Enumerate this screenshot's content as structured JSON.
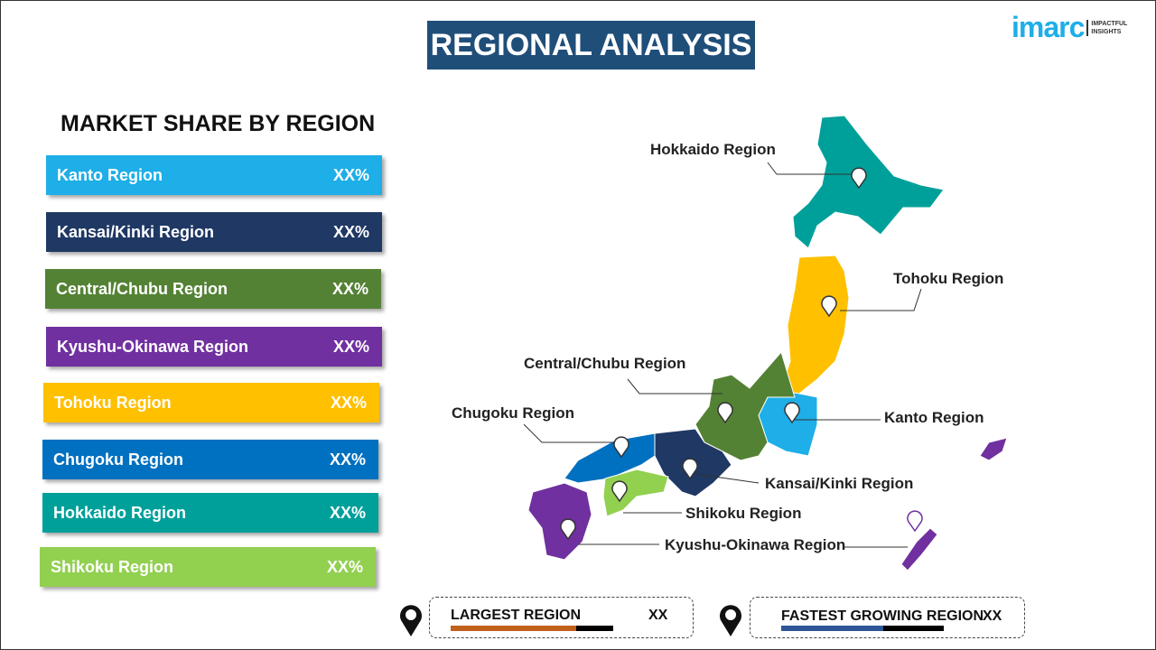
{
  "title": "REGIONAL ANALYSIS",
  "logo": {
    "brand": "imarc",
    "tagline1": "IMPACTFUL",
    "tagline2": "INSIGHTS"
  },
  "market_share_title": "MARKET SHARE BY REGION",
  "regions": [
    {
      "label": "Kanto  Region",
      "value": "XX%",
      "color": "#1eaee8"
    },
    {
      "label": "Kansai/Kinki  Region",
      "value": "XX%",
      "color": "#1f3864"
    },
    {
      "label": "Central/Chubu  Region",
      "value": "XX%",
      "color": "#548235"
    },
    {
      "label": "Kyushu-Okinawa  Region",
      "value": "XX%",
      "color": "#7030a0"
    },
    {
      "label": "Tohoku  Region",
      "value": "XX%",
      "color": "#ffc000"
    },
    {
      "label": "Chugoku  Region",
      "value": "XX%",
      "color": "#0070c0"
    },
    {
      "label": "Hokkaido  Region",
      "value": "XX%",
      "color": "#00a09a"
    },
    {
      "label": "Shikoku  Region",
      "value": "XX%",
      "color": "#92d050"
    }
  ],
  "map_labels": {
    "hokkaido": "Hokkaido Region",
    "tohoku": "Tohoku Region",
    "central": "Central/Chubu Region",
    "chugoku": "Chugoku Region",
    "kanto": "Kanto Region",
    "kansai": "Kansai/Kinki Region",
    "shikoku": "Shikoku Region",
    "kyushu": "Kyushu-Okinawa Region"
  },
  "largest": {
    "label": "LARGEST REGION",
    "value": "XX",
    "color": "#c0601a",
    "fill_pct": 77
  },
  "fastest": {
    "label": "FASTEST GROWING REGION",
    "value": "XX",
    "color": "#2f5597",
    "fill_pct": 63
  }
}
